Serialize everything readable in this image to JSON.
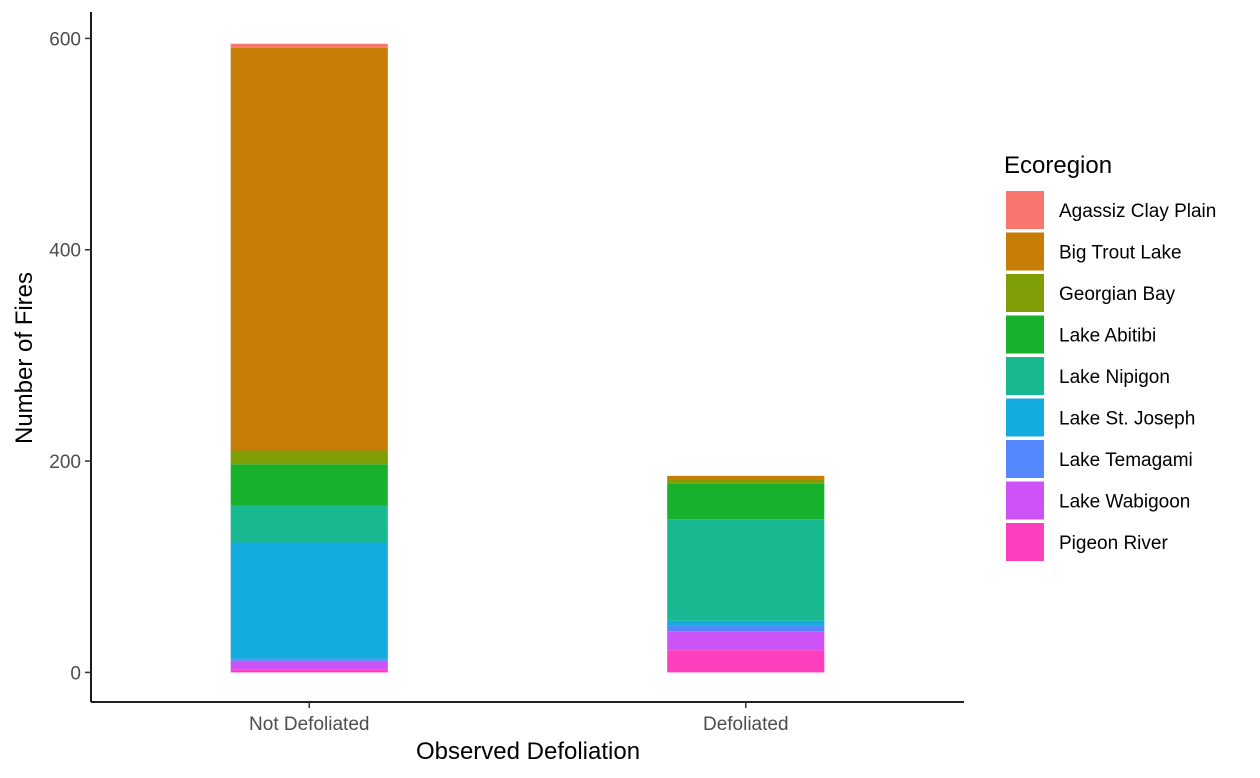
{
  "chart_data": {
    "type": "bar",
    "stacked": true,
    "categories": [
      "Not Defoliated",
      "Defoliated"
    ],
    "xlabel": "Observed Defoliation",
    "ylabel": "Number of Fires",
    "ylim": [
      -28,
      625
    ],
    "yticks": [
      0,
      200,
      400,
      600
    ],
    "grid": false,
    "legend": {
      "title": "Ecoregion",
      "placement": "right"
    },
    "series": [
      {
        "name": "Agassiz Clay Plain",
        "color": "#F8766D",
        "values": [
          4,
          0
        ]
      },
      {
        "name": "Big Trout Lake",
        "color": "#C77C05",
        "values": [
          381,
          3
        ]
      },
      {
        "name": "Georgian Bay",
        "color": "#7F9D04",
        "values": [
          13,
          4
        ]
      },
      {
        "name": "Lake Abitibi",
        "color": "#18B12D",
        "values": [
          39,
          34
        ]
      },
      {
        "name": "Lake Nipigon",
        "color": "#18B891",
        "values": [
          35,
          96
        ]
      },
      {
        "name": "Lake St. Joseph",
        "color": "#14ABDE",
        "values": [
          110,
          5
        ]
      },
      {
        "name": "Lake Temagami",
        "color": "#5388FF",
        "values": [
          2,
          5
        ]
      },
      {
        "name": "Lake Wabigoon",
        "color": "#CE53F6",
        "values": [
          8,
          18
        ]
      },
      {
        "name": "Pigeon River",
        "color": "#FD3FBE",
        "values": [
          3,
          21
        ]
      }
    ]
  }
}
